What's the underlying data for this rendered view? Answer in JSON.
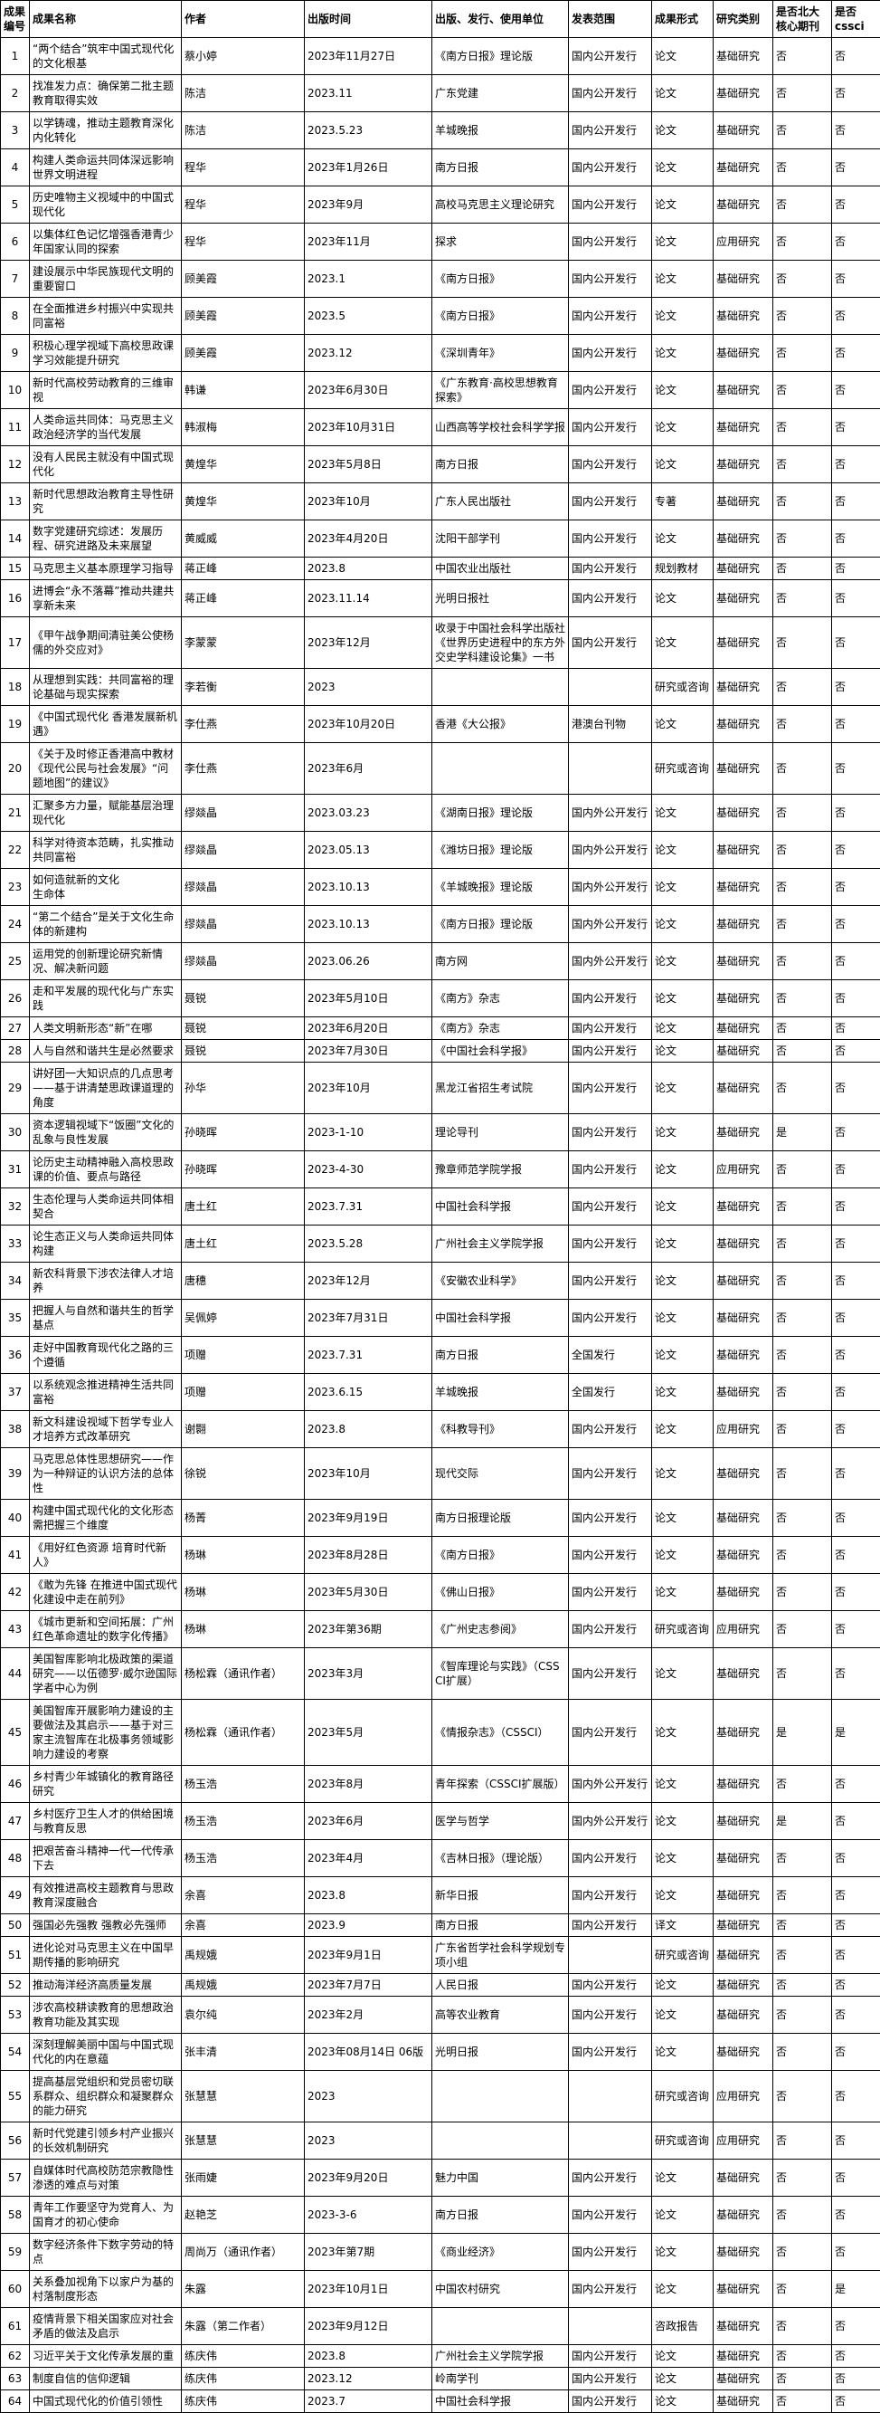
{
  "table": {
    "columns": [
      {
        "key": "id",
        "label": "成果\n编号"
      },
      {
        "key": "name",
        "label": "成果名称"
      },
      {
        "key": "author",
        "label": "作者"
      },
      {
        "key": "pubtime",
        "label": "出版时间"
      },
      {
        "key": "publisher",
        "label": "出版、发行、使用单位"
      },
      {
        "key": "scope",
        "label": "发表范围"
      },
      {
        "key": "form",
        "label": "成果形式"
      },
      {
        "key": "category",
        "label": "研究类别"
      },
      {
        "key": "core",
        "label": "是否北大\n核心期刊"
      },
      {
        "key": "cssci",
        "label": "是否\ncssci"
      }
    ],
    "rows": [
      [
        "1",
        "“两个结合”筑牢中国式现代化的文化根基",
        "蔡小婷",
        "2023年11月27日",
        "《南方日报》理论版",
        "国内公开发行",
        "论文",
        "基础研究",
        "否",
        "否"
      ],
      [
        "2",
        "找准发力点：确保第二批主题教育取得实效",
        "陈洁",
        "2023.11",
        "广东党建",
        "国内公开发行",
        "论文",
        "基础研究",
        "否",
        "否"
      ],
      [
        "3",
        "以学铸魂，推动主题教育深化内化转化",
        "陈洁",
        "2023.5.23",
        "羊城晚报",
        "国内公开发行",
        "论文",
        "基础研究",
        "否",
        "否"
      ],
      [
        "4",
        "构建人类命运共同体深远影响世界文明进程",
        "程华",
        "2023年1月26日",
        "南方日报",
        "国内公开发行",
        "论文",
        "基础研究",
        "否",
        "否"
      ],
      [
        "5",
        "历史唯物主义视域中的中国式现代化",
        "程华",
        "2023年9月",
        "高校马克思主义理论研究",
        "国内公开发行",
        "论文",
        "基础研究",
        "否",
        "否"
      ],
      [
        "6",
        "以集体红色记忆增强香港青少年国家认同的探索",
        "程华",
        "2023年11月",
        "探求",
        "国内公开发行",
        "论文",
        "应用研究",
        "否",
        "否"
      ],
      [
        "7",
        "建设展示中华民族现代文明的重要窗口",
        "顾美霞",
        "2023.1",
        "《南方日报》",
        "国内公开发行",
        "论文",
        "基础研究",
        "否",
        "否"
      ],
      [
        "8",
        "在全面推进乡村振兴中实现共同富裕",
        "顾美霞",
        "2023.5",
        "《南方日报》",
        "国内公开发行",
        "论文",
        "基础研究",
        "否",
        "否"
      ],
      [
        "9",
        "积极心理学视域下高校思政课学习效能提升研究",
        "顾美霞",
        "2023.12",
        "《深圳青年》",
        "国内公开发行",
        "论文",
        "基础研究",
        "否",
        "否"
      ],
      [
        "10",
        "新时代高校劳动教育的三维审视",
        "韩谦",
        "2023年6月30日",
        "《广东教育·高校思想教育探索》",
        "国内公开发行",
        "论文",
        "基础研究",
        "否",
        "否"
      ],
      [
        "11",
        "人类命运共同体：马克思主义政治经济学的当代发展",
        "韩淑梅",
        "2023年10月31日",
        "山西高等学校社会科学学报",
        "国内公开发行",
        "论文",
        "基础研究",
        "否",
        "否"
      ],
      [
        "12",
        "没有人民民主就没有中国式现代化",
        "黄煌华",
        "2023年5月8日",
        "南方日报",
        "国内公开发行",
        "论文",
        "基础研究",
        "否",
        "否"
      ],
      [
        "13",
        "新时代思想政治教育主导性研究",
        "黄煌华",
        "2023年10月",
        "广东人民出版社",
        "国内公开发行",
        "专著",
        "基础研究",
        "否",
        "否"
      ],
      [
        "14",
        "数字党建研究综述：发展历程、研究进路及未来展望",
        "黄威威",
        "2023年4月20日",
        "沈阳干部学刊",
        "国内公开发行",
        "论文",
        "基础研究",
        "否",
        "否"
      ],
      [
        "15",
        "马克思主义基本原理学习指导",
        "蒋正峰",
        "2023.8",
        "中国农业出版社",
        "国内公开发行",
        "规划教材",
        "基础研究",
        "否",
        "否"
      ],
      [
        "16",
        "进博会“永不落幕”推动共建共享新未来",
        "蒋正峰",
        "2023.11.14",
        "光明日报社",
        "国内公开发行",
        "论文",
        "基础研究",
        "否",
        "否"
      ],
      [
        "17",
        "《甲午战争期间清驻美公使杨儒的外交应对》",
        "李蒙蒙",
        "2023年12月",
        "收录于中国社会科学出版社《世界历史进程中的东方外交史学科建设论集》一书",
        "国内公开发行",
        "论文",
        "基础研究",
        "否",
        "否"
      ],
      [
        "18",
        "从理想到实践：共同富裕的理论基础与现实探索",
        "李若衡",
        "2023",
        "",
        "",
        "研究或咨询",
        "基础研究",
        "否",
        "否"
      ],
      [
        "19",
        "《中国式现代化 香港发展新机遇》",
        "李仕燕",
        "2023年10月20日",
        "香港《大公报》",
        "港澳台刊物",
        "论文",
        "基础研究",
        "否",
        "否"
      ],
      [
        "20",
        "《关于及时修正香港高中教材《现代公民与社会发展》“问题地图”的建议》",
        "李仕燕",
        "2023年6月",
        "",
        "",
        "研究或咨询",
        "基础研究",
        "否",
        "否"
      ],
      [
        "21",
        "汇聚多方力量，赋能基层治理现代化",
        "缪燚晶",
        "2023.03.23",
        "《湖南日报》理论版",
        "国内外公开发行",
        "论文",
        "基础研究",
        "否",
        "否"
      ],
      [
        "22",
        "科学对待资本范畴，扎实推动共同富裕",
        "缪燚晶",
        "2023.05.13",
        "《潍坊日报》理论版",
        "国内外公开发行",
        "论文",
        "基础研究",
        "否",
        "否"
      ],
      [
        "23",
        "如何造就新的文化\n生命体",
        "缪燚晶",
        "2023.10.13",
        "《羊城晚报》理论版",
        "国内外公开发行",
        "论文",
        "基础研究",
        "否",
        "否"
      ],
      [
        "24",
        "“第二个结合”是关于文化生命体的新建构",
        "缪燚晶",
        "2023.10.13",
        "《南方日报》理论版",
        "国内外公开发行",
        "论文",
        "基础研究",
        "否",
        "否"
      ],
      [
        "25",
        "运用党的创新理论研究新情况、解决新问题",
        "缪燚晶",
        "2023.06.26",
        "南方网",
        "国内外公开发行",
        "论文",
        "基础研究",
        "否",
        "否"
      ],
      [
        "26",
        "走和平发展的现代化与广东实践",
        "聂锐",
        "2023年5月10日",
        "《南方》杂志",
        "国内公开发行",
        "论文",
        "基础研究",
        "否",
        "否"
      ],
      [
        "27",
        "人类文明新形态“新”在哪",
        "聂锐",
        "2023年6月20日",
        "《南方》杂志",
        "国内公开发行",
        "论文",
        "基础研究",
        "否",
        "否"
      ],
      [
        "28",
        "人与自然和谐共生是必然要求",
        "聂锐",
        "2023年7月30日",
        "《中国社会科学报》",
        "国内公开发行",
        "论文",
        "基础研究",
        "否",
        "否"
      ],
      [
        "29",
        "讲好团一大知识点的几点思考——基于讲清楚思政课道理的角度",
        "孙华",
        "2023年10月",
        "黑龙江省招生考试院",
        "国内公开发行",
        "论文",
        "基础研究",
        "否",
        "否"
      ],
      [
        "30",
        "资本逻辑视域下“饭圈”文化的乱象与良性发展",
        "孙晓晖",
        "2023-1-10",
        "理论导刊",
        "国内公开发行",
        "论文",
        "基础研究",
        "是",
        "否"
      ],
      [
        "31",
        "论历史主动精神融入高校思政课的价值、要点与路径",
        "孙晓晖",
        "2023-4-30",
        "豫章师范学院学报",
        "国内公开发行",
        "论文",
        "应用研究",
        "否",
        "否"
      ],
      [
        "32",
        "生态伦理与人类命运共同体相契合",
        "唐土红",
        "2023.7.31",
        "中国社会科学报",
        "国内公开发行",
        "论文",
        "基础研究",
        "否",
        "否"
      ],
      [
        "33",
        "论生态正义与人类命运共同体构建",
        "唐土红",
        "2023.5.28",
        "广州社会主义学院学报",
        "国内公开发行",
        "论文",
        "基础研究",
        "否",
        "否"
      ],
      [
        "34",
        "新农科背景下涉农法律人才培养",
        "唐穗",
        "2023年12月",
        "《安徽农业科学》",
        "国内公开发行",
        "论文",
        "基础研究",
        "否",
        "否"
      ],
      [
        "35",
        "把握人与自然和谐共生的哲学基点",
        "吴佩婷",
        "2023年7月31日",
        "中国社会科学报",
        "国内公开发行",
        "论文",
        "基础研究",
        "否",
        "否"
      ],
      [
        "36",
        "走好中国教育现代化之路的三个遵循",
        "项赠",
        "2023.7.31",
        "南方日报",
        "全国发行",
        "论文",
        "基础研究",
        "否",
        "否"
      ],
      [
        "37",
        "以系统观念推进精神生活共同富裕",
        "项赠",
        "2023.6.15",
        "羊城晚报",
        "全国发行",
        "论文",
        "基础研究",
        "否",
        "否"
      ],
      [
        "38",
        "新文科建设视域下哲学专业人才培养方式改革研究",
        "谢翾",
        "2023.8",
        "《科教导刊》",
        "国内公开发行",
        "论文",
        "应用研究",
        "否",
        "否"
      ],
      [
        "39",
        "马克思总体性思想研究——作为一种辩证的认识方法的总体性",
        "徐锐",
        "2023年10月",
        "现代交际",
        "国内公开发行",
        "论文",
        "基础研究",
        "否",
        "否"
      ],
      [
        "40",
        "构建中国式现代化的文化形态需把握三个维度",
        "杨菁",
        "2023年9月19日",
        "南方日报理论版",
        "国内公开发行",
        "论文",
        "基础研究",
        "否",
        "否"
      ],
      [
        "41",
        "《用好红色资源 培育时代新人》",
        "杨琳",
        "2023年8月28日",
        "《南方日报》",
        "国内公开发行",
        "论文",
        "基础研究",
        "否",
        "否"
      ],
      [
        "42",
        "《敢为先锋 在推进中国式现代化建设中走在前列》",
        "杨琳",
        "2023年5月30日",
        "《佛山日报》",
        "国内公开发行",
        "论文",
        "基础研究",
        "否",
        "否"
      ],
      [
        "43",
        "《城市更新和空间拓展：广州红色革命遗址的数字化传播》",
        "杨琳",
        "2023年第36期",
        "《广州史志参阅》",
        "国内公开发行",
        "研究或咨询",
        "应用研究",
        "否",
        "否"
      ],
      [
        "44",
        "美国智库影响北极政策的渠道研究——以伍德罗·威尔逊国际学者中心为例",
        "杨松霖（通讯作者）",
        "2023年3月",
        "《智库理论与实践》（CSSCI扩展）",
        "国内公开发行",
        "论文",
        "基础研究",
        "否",
        "否"
      ],
      [
        "45",
        "美国智库开展影响力建设的主要做法及其启示——基于对三家主流智库在北极事务领域影响力建设的考察",
        "杨松霖（通讯作者）",
        "2023年5月",
        "《情报杂志》（CSSCI）",
        "国内公开发行",
        "论文",
        "基础研究",
        "是",
        "是"
      ],
      [
        "46",
        "乡村青少年城镇化的教育路径研究",
        "杨玉浩",
        "2023年8月",
        "青年探索（CSSCI扩展版）",
        "国内外公开发行",
        "论文",
        "基础研究",
        "否",
        "否"
      ],
      [
        "47",
        "乡村医疗卫生人才的供给困境与教育反思",
        "杨玉浩",
        "2023年6月",
        "医学与哲学",
        "国内外公开发行",
        "论文",
        "基础研究",
        "是",
        "否"
      ],
      [
        "48",
        "把艰苦奋斗精神一代一代传承下去",
        "杨玉浩",
        "2023年4月",
        "《吉林日报》（理论版）",
        "国内公开发行",
        "论文",
        "基础研究",
        "否",
        "否"
      ],
      [
        "49",
        "有效推进高校主题教育与思政教育深度融合",
        "余喜",
        "2023.8",
        "新华日报",
        "国内公开发行",
        "论文",
        "基础研究",
        "否",
        "否"
      ],
      [
        "50",
        "强国必先强教 强教必先强师",
        "余喜",
        "2023.9",
        "南方日报",
        "国内公开发行",
        "译文",
        "基础研究",
        "否",
        "否"
      ],
      [
        "51",
        "进化论对马克思主义在中国早期传播的影响研究",
        "禹规娥",
        "2023年9月1日",
        "广东省哲学社会科学规划专项小组",
        "",
        "研究或咨询",
        "基础研究",
        "否",
        "否"
      ],
      [
        "52",
        "推动海洋经济高质量发展",
        "禹规娥",
        "2023年7月7日",
        "人民日报",
        "国内公开发行",
        "论文",
        "基础研究",
        "否",
        "否"
      ],
      [
        "53",
        "涉农高校耕读教育的思想政治教育功能及其实现",
        "袁尔纯",
        "2023年2月",
        "高等农业教育",
        "国内公开发行",
        "论文",
        "基础研究",
        "否",
        "否"
      ],
      [
        "54",
        "深刻理解美丽中国与中国式现代化的内在意蕴",
        "张丰清",
        "2023年08月14日 06版",
        "光明日报",
        "国内公开发行",
        "论文",
        "基础研究",
        "否",
        "否"
      ],
      [
        "55",
        "提高基层党组织和党员密切联系群众、组织群众和凝聚群众的能力研究",
        "张慧慧",
        "2023",
        "",
        "",
        "研究或咨询",
        "应用研究",
        "否",
        "否"
      ],
      [
        "56",
        "新时代党建引领乡村产业振兴的长效机制研究",
        "张慧慧",
        "2023",
        "",
        "",
        "研究或咨询",
        "应用研究",
        "否",
        "否"
      ],
      [
        "57",
        "自媒体时代高校防范宗教隐性渗透的难点与对策",
        "张雨婕",
        "2023年9月20日",
        "魅力中国",
        "国内公开发行",
        "论文",
        "基础研究",
        "否",
        "否"
      ],
      [
        "58",
        "青年工作要坚守为党育人、为国育才的初心使命",
        "赵艳芝",
        "2023-3-6",
        "南方日报",
        "国内公开发行",
        "论文",
        "基础研究",
        "否",
        "否"
      ],
      [
        "59",
        "数字经济条件下数字劳动的特点",
        "周尚万（通讯作者）",
        "2023年第7期",
        "《商业经济》",
        "国内公开发行",
        "论文",
        "基础研究",
        "否",
        "否"
      ],
      [
        "60",
        "关系叠加视角下以家户为基的村落制度形态",
        "朱露",
        "2023年10月1日",
        "中国农村研究",
        "国内公开发行",
        "论文",
        "基础研究",
        "否",
        "是"
      ],
      [
        "61",
        "疫情背景下相关国家应对社会矛盾的做法及启示",
        "朱露（第二作者）",
        "2023年9月12日",
        "",
        "",
        "咨政报告",
        "基础研究",
        "否",
        "否"
      ],
      [
        "62",
        "习近平关于文化传承发展的重",
        "练庆伟",
        "2023.8",
        "广州社会主义学院学报",
        "国内公开发行",
        "论文",
        "基础研究",
        "否",
        "否"
      ],
      [
        "63",
        "制度自信的信仰逻辑",
        "练庆伟",
        "2023.12",
        "岭南学刊",
        "国内公开发行",
        "论文",
        "基础研究",
        "否",
        "否"
      ],
      [
        "64",
        "中国式现代化的价值引领性",
        "练庆伟",
        "2023.7",
        "中国社会科学报",
        "国内公开发行",
        "论文",
        "基础研究",
        "否",
        "否"
      ]
    ]
  }
}
